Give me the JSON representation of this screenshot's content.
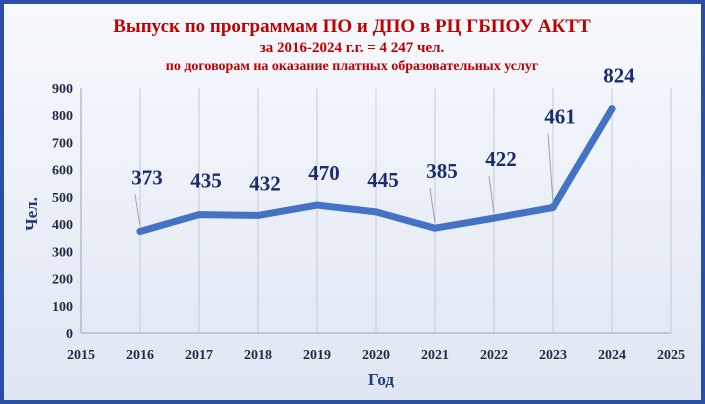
{
  "chart_data": {
    "type": "line",
    "title": "Выпуск по программам ПО и ДПО в РЦ ГБПОУ АКТТ",
    "subtitle": "за 2016-2024 г.г. = 4 247 чел.",
    "subtitle2": "по договорам на оказание платных образовательных услуг",
    "xlabel": "Год",
    "ylabel": "Чел.",
    "xlim": [
      2015,
      2025
    ],
    "ylim": [
      0,
      900
    ],
    "x_ticks": [
      2015,
      2016,
      2017,
      2018,
      2019,
      2020,
      2021,
      2022,
      2023,
      2024,
      2025
    ],
    "y_ticks": [
      0,
      100,
      200,
      300,
      400,
      500,
      600,
      700,
      800,
      900
    ],
    "grid": "vertical",
    "series": [
      {
        "x": [
          2016,
          2017,
          2018,
          2019,
          2020,
          2021,
          2022,
          2023,
          2024
        ],
        "values": [
          373,
          435,
          432,
          470,
          445,
          385,
          422,
          461,
          824
        ],
        "labels": [
          "373",
          "435",
          "432",
          "470",
          "445",
          "385",
          "422",
          "461",
          "824"
        ],
        "color": "#4472c4"
      }
    ],
    "colors": {
      "title": "#c00000",
      "frame": "#2b4fa8",
      "label": "#1a2c6b"
    }
  }
}
